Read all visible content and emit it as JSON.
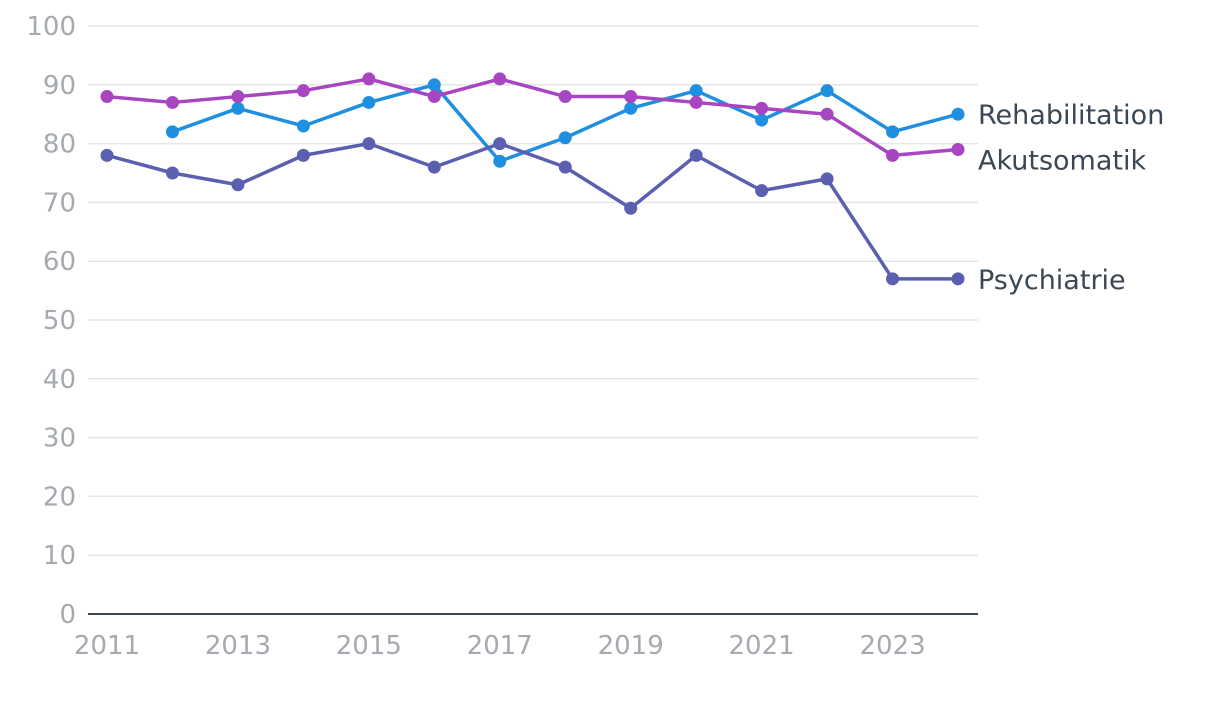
{
  "chart_data": {
    "type": "line",
    "title": "",
    "xlabel": "",
    "ylabel": "",
    "ylim": [
      0,
      100
    ],
    "xlim": [
      2011,
      2024
    ],
    "y_ticks": [
      "0",
      "10",
      "20",
      "30",
      "40",
      "50",
      "60",
      "70",
      "80",
      "90",
      "100"
    ],
    "x_ticks": [
      {
        "year": 2011,
        "label": "2011"
      },
      {
        "year": 2013,
        "label": "2013"
      },
      {
        "year": 2015,
        "label": "2015"
      },
      {
        "year": 2017,
        "label": "2017"
      },
      {
        "year": 2019,
        "label": "2019"
      },
      {
        "year": 2021,
        "label": "2021"
      },
      {
        "year": 2023,
        "label": "2023"
      }
    ],
    "grid": true,
    "legend": "direct labels at right end of lines",
    "series": [
      {
        "name": "Rehabilitation",
        "color": "#1f8fe0",
        "x": [
          2012,
          2013,
          2014,
          2015,
          2016,
          2017,
          2018,
          2019,
          2020,
          2021,
          2022,
          2023,
          2024
        ],
        "values": [
          82,
          86,
          83,
          87,
          90,
          77,
          81,
          86,
          89,
          84,
          89,
          82,
          85
        ]
      },
      {
        "name": "Akutsomatik",
        "color": "#a845c0",
        "x": [
          2011,
          2012,
          2013,
          2014,
          2015,
          2016,
          2017,
          2018,
          2019,
          2020,
          2021,
          2022,
          2023,
          2024
        ],
        "values": [
          88,
          87,
          88,
          89,
          91,
          88,
          91,
          88,
          88,
          87,
          86,
          85,
          78,
          79
        ]
      },
      {
        "name": "Psychiatrie",
        "color": "#5a5fb0",
        "x": [
          2011,
          2012,
          2013,
          2014,
          2015,
          2016,
          2017,
          2018,
          2019,
          2020,
          2021,
          2022,
          2023,
          2024
        ],
        "values": [
          78,
          75,
          73,
          78,
          80,
          76,
          80,
          76,
          69,
          78,
          72,
          74,
          57,
          57
        ]
      }
    ]
  }
}
